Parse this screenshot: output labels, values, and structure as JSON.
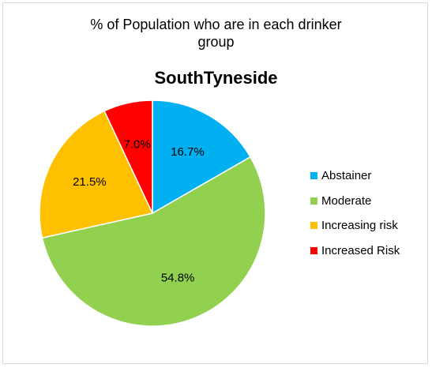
{
  "chart_data": {
    "type": "pie",
    "title_lines": [
      "% of Population who are in each drinker",
      "group"
    ],
    "subtitle": "SouthTyneside",
    "slices": [
      {
        "name": "Abstainer",
        "value": 16.7,
        "label": "16.7%",
        "color": "#00B0F0"
      },
      {
        "name": "Moderate",
        "value": 54.8,
        "label": "54.8%",
        "color": "#92D050"
      },
      {
        "name": "Increasing risk",
        "value": 21.5,
        "label": "21.5%",
        "color": "#FFC000"
      },
      {
        "name": "Increased Risk",
        "value": 7.0,
        "label": "7.0%",
        "color": "#FF0000"
      }
    ],
    "start_angle_deg": 0,
    "direction": "clockwise",
    "legend_position": "right"
  }
}
